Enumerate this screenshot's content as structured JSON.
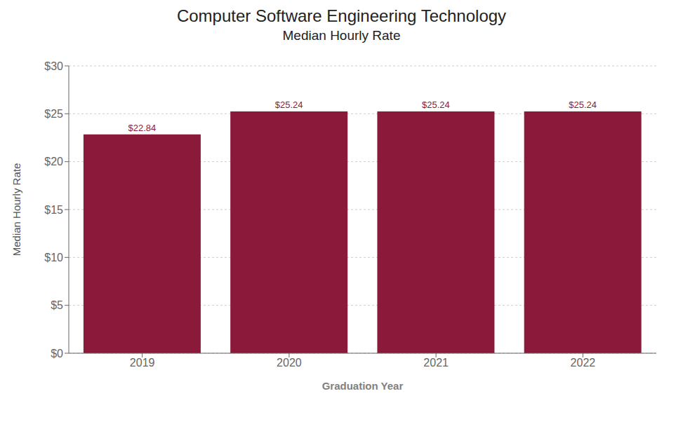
{
  "chart_data": {
    "type": "bar",
    "title": "Computer Software Engineering Technology",
    "subtitle": "Median Hourly Rate",
    "categories": [
      "2019",
      "2020",
      "2021",
      "2022"
    ],
    "values": [
      22.84,
      25.24,
      25.24,
      25.24
    ],
    "value_labels": [
      "$22.84",
      "$25.24",
      "$25.24",
      "$25.24"
    ],
    "color": "#8B1A3A",
    "xlabel": "Graduation Year",
    "ylabel": "Median Hourly Rate",
    "ylim": [
      0,
      30
    ],
    "yticks": [
      {
        "value": 0,
        "label": "$0"
      },
      {
        "value": 5,
        "label": "$5"
      },
      {
        "value": 10,
        "label": "$10"
      },
      {
        "value": 15,
        "label": "$15"
      },
      {
        "value": 20,
        "label": "$20"
      },
      {
        "value": 25,
        "label": "$25"
      },
      {
        "value": 30,
        "label": "$30"
      }
    ],
    "grid": true,
    "data_labels": true
  }
}
